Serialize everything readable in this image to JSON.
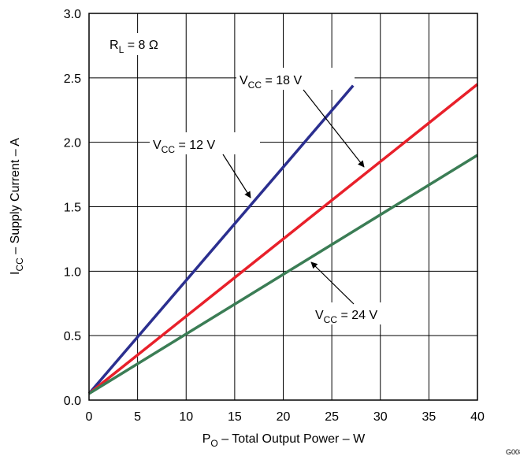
{
  "chart_data": {
    "type": "line",
    "xlabel": {
      "base": "P",
      "sub": "O",
      "text": " – Total Output Power – W"
    },
    "ylabel": {
      "base": "I",
      "sub": "CC",
      "text": " – Supply Current – A"
    },
    "annotation": {
      "base": "R",
      "sub": "L",
      "text": " = 8 Ω"
    },
    "figure_id": "G008",
    "xlim": [
      0,
      40
    ],
    "ylim": [
      0,
      3
    ],
    "xticks": [
      0,
      5,
      10,
      15,
      20,
      25,
      30,
      35,
      40
    ],
    "yticks": [
      {
        "value": 0,
        "label": "0.0"
      },
      {
        "value": 0.5,
        "label": "0.5"
      },
      {
        "value": 1,
        "label": "1.0"
      },
      {
        "value": 1.5,
        "label": "1.5"
      },
      {
        "value": 2,
        "label": "2.0"
      },
      {
        "value": 2.5,
        "label": "2.5"
      },
      {
        "value": 3,
        "label": "3.0"
      }
    ],
    "grid": true,
    "series": [
      {
        "label": {
          "base": "V",
          "sub": "CC",
          "text": " = 12 V"
        },
        "color": "#2b2f8f",
        "x": [
          0,
          27.2
        ],
        "values": [
          0.05,
          2.44
        ]
      },
      {
        "label": {
          "base": "V",
          "sub": "CC",
          "text": " = 18 V"
        },
        "color": "#e8202a",
        "x": [
          0,
          40
        ],
        "values": [
          0.05,
          2.45
        ]
      },
      {
        "label": {
          "base": "V",
          "sub": "CC",
          "text": " = 24 V"
        },
        "color": "#3b7d55",
        "x": [
          0,
          40
        ],
        "values": [
          0.05,
          1.9
        ]
      }
    ]
  }
}
